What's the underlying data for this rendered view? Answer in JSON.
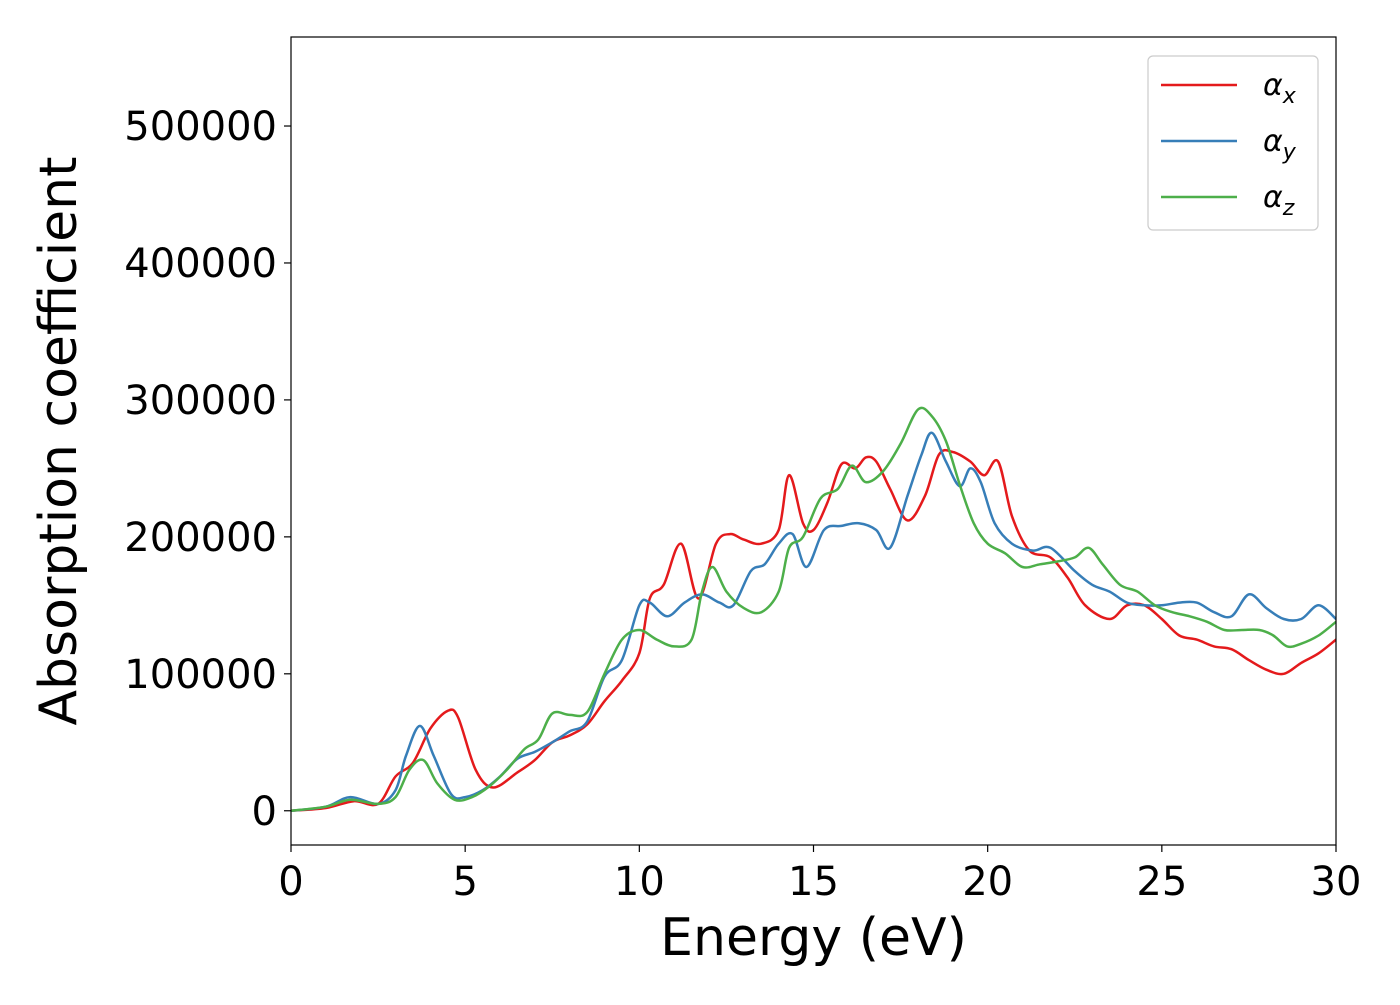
{
  "chart_data": {
    "type": "line",
    "title": "",
    "xlabel": "Energy (eV)",
    "ylabel": "Absorption coefficient",
    "xlim": [
      0,
      30
    ],
    "ylim": [
      -25000,
      565000
    ],
    "xticks": [
      0,
      5,
      10,
      15,
      20,
      25,
      30
    ],
    "yticks": [
      0,
      100000,
      200000,
      300000,
      400000,
      500000
    ],
    "xtick_labels": [
      "0",
      "5",
      "10",
      "15",
      "20",
      "25",
      "30"
    ],
    "ytick_labels": [
      "0",
      "100000",
      "200000",
      "300000",
      "400000",
      "500000"
    ],
    "grid": false,
    "legend_position": "top-right",
    "series": [
      {
        "name": "αx",
        "label_base": "α",
        "label_sub": "x",
        "color": "#e41a1c",
        "x": [
          0,
          1,
          1.8,
          2.5,
          3.0,
          3.5,
          4.0,
          4.5,
          4.8,
          5.3,
          5.8,
          6.5,
          7.0,
          7.5,
          8.0,
          8.5,
          9.0,
          9.5,
          10.0,
          10.3,
          10.7,
          11.2,
          11.7,
          12.2,
          12.6,
          13.0,
          13.5,
          14.0,
          14.3,
          14.7,
          15.0,
          15.4,
          15.8,
          16.2,
          16.5,
          16.8,
          17.2,
          17.7,
          18.2,
          18.6,
          19.0,
          19.5,
          19.9,
          20.3,
          20.7,
          21.2,
          21.8,
          22.3,
          22.8,
          23.5,
          24.0,
          24.5,
          25.0,
          25.5,
          26.0,
          26.5,
          27.0,
          27.5,
          28.0,
          28.5,
          29.0,
          29.5,
          30.0
        ],
        "y": [
          0,
          2000,
          7000,
          5000,
          25000,
          35000,
          60000,
          73000,
          68000,
          30000,
          17000,
          28000,
          37000,
          50000,
          55000,
          63000,
          80000,
          95000,
          115000,
          155000,
          165000,
          195000,
          155000,
          195000,
          202000,
          198000,
          195000,
          205000,
          245000,
          210000,
          205000,
          225000,
          253000,
          250000,
          258000,
          255000,
          235000,
          212000,
          230000,
          260000,
          262000,
          255000,
          245000,
          255000,
          215000,
          190000,
          185000,
          170000,
          150000,
          140000,
          150000,
          150000,
          140000,
          128000,
          125000,
          120000,
          118000,
          110000,
          103000,
          100000,
          108000,
          115000,
          125000
        ]
      },
      {
        "name": "αy",
        "label_base": "α",
        "label_sub": "y",
        "color": "#377eb8",
        "x": [
          0,
          1,
          1.7,
          2.5,
          3.0,
          3.3,
          3.7,
          4.1,
          4.6,
          5.0,
          5.5,
          6.0,
          6.5,
          7.0,
          7.5,
          8.0,
          8.5,
          9.0,
          9.5,
          10.0,
          10.3,
          10.8,
          11.3,
          11.8,
          12.3,
          12.7,
          13.2,
          13.6,
          14.0,
          14.4,
          14.8,
          15.3,
          15.8,
          16.3,
          16.8,
          17.2,
          17.7,
          18.1,
          18.4,
          18.8,
          19.2,
          19.5,
          19.8,
          20.2,
          20.7,
          21.3,
          21.8,
          22.5,
          23.0,
          23.5,
          24.0,
          24.5,
          25.0,
          25.5,
          26.0,
          26.5,
          27.0,
          27.5,
          28.0,
          28.5,
          29.0,
          29.5,
          30.0
        ],
        "y": [
          0,
          3000,
          10000,
          5000,
          15000,
          40000,
          62000,
          40000,
          12000,
          10000,
          15000,
          25000,
          38000,
          43000,
          50000,
          58000,
          65000,
          98000,
          110000,
          150000,
          152000,
          142000,
          152000,
          158000,
          152000,
          150000,
          175000,
          180000,
          195000,
          202000,
          178000,
          205000,
          208000,
          210000,
          205000,
          192000,
          230000,
          260000,
          276000,
          255000,
          237000,
          250000,
          240000,
          210000,
          195000,
          190000,
          192000,
          175000,
          165000,
          160000,
          152000,
          150000,
          150000,
          152000,
          152000,
          145000,
          142000,
          158000,
          148000,
          140000,
          140000,
          150000,
          140000
        ]
      },
      {
        "name": "αz",
        "label_base": "α",
        "label_sub": "z",
        "color": "#4daf4a",
        "x": [
          0,
          1,
          1.7,
          2.5,
          3.0,
          3.4,
          3.8,
          4.2,
          4.7,
          5.2,
          5.7,
          6.2,
          6.7,
          7.1,
          7.5,
          8.0,
          8.5,
          9.0,
          9.5,
          10.0,
          10.5,
          11.0,
          11.5,
          11.8,
          12.1,
          12.5,
          13.0,
          13.5,
          14.0,
          14.3,
          14.7,
          15.2,
          15.7,
          16.1,
          16.5,
          17.0,
          17.5,
          18.0,
          18.4,
          18.8,
          19.2,
          19.6,
          20.0,
          20.5,
          21.0,
          21.5,
          22.0,
          22.5,
          22.9,
          23.3,
          23.8,
          24.3,
          24.8,
          25.3,
          25.8,
          26.3,
          26.8,
          27.3,
          27.8,
          28.2,
          28.6,
          29.0,
          29.5,
          30.0
        ],
        "y": [
          0,
          3000,
          8000,
          5000,
          10000,
          30000,
          37000,
          20000,
          8000,
          10000,
          18000,
          30000,
          45000,
          52000,
          71000,
          70000,
          72000,
          100000,
          125000,
          132000,
          125000,
          120000,
          125000,
          160000,
          178000,
          160000,
          148000,
          145000,
          160000,
          192000,
          200000,
          228000,
          235000,
          252000,
          240000,
          248000,
          268000,
          293000,
          288000,
          270000,
          238000,
          210000,
          195000,
          188000,
          178000,
          180000,
          182000,
          185000,
          192000,
          180000,
          165000,
          160000,
          150000,
          145000,
          142000,
          138000,
          132000,
          132000,
          132000,
          128000,
          120000,
          122000,
          128000,
          138000
        ]
      }
    ]
  }
}
